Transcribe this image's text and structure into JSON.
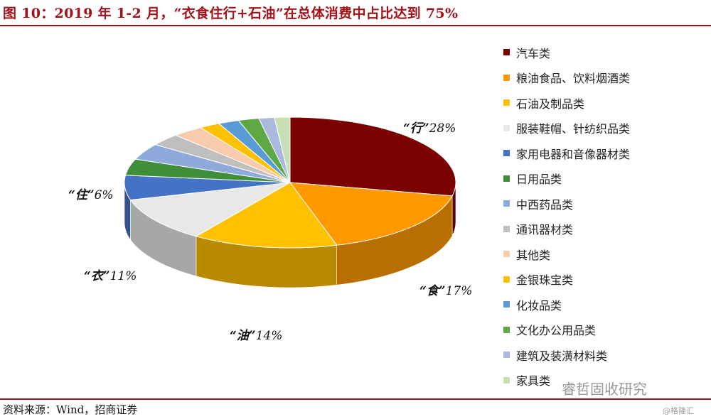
{
  "title": "图 10：2019 年 1-2 月，“衣食住行+石油”在总体消费中占比达到 75%",
  "source": "资料来源：Wind，招商证券",
  "watermark": "睿哲固收研究",
  "watermark_small": "@格隆汇",
  "chart_data": {
    "type": "pie",
    "categories": [
      "汽车类",
      "粮油食品、饮料烟酒类",
      "石油及制品类",
      "服装鞋帽、针纺织品类",
      "家用电器和音像器材类",
      "日用品类",
      "中西药品类",
      "通讯器材类",
      "其他类",
      "金银珠宝类",
      "化妆品类",
      "文化办公用品类",
      "建筑及装潢材料类",
      "家具类"
    ],
    "values": [
      28,
      17,
      14,
      11,
      6,
      4,
      4,
      3,
      3,
      2,
      2,
      2,
      1.5,
      1.5
    ],
    "colors": [
      "#7b0000",
      "#ff9900",
      "#ffc000",
      "#e8e8e8",
      "#4472c4",
      "#3f8f3a",
      "#8eaadb",
      "#bfbfbf",
      "#f8cbad",
      "#ffc000",
      "#5b9bd5",
      "#5da843",
      "#a9b8dc",
      "#c6e0b4"
    ],
    "legend_position": "right",
    "annotations": [
      {
        "label": "“行”",
        "pct": "28%"
      },
      {
        "label": "“食”",
        "pct": "17%"
      },
      {
        "label": "“油”",
        "pct": "14%"
      },
      {
        "label": "“衣”",
        "pct": "11%"
      },
      {
        "label": "“住”",
        "pct": "6%"
      }
    ]
  }
}
